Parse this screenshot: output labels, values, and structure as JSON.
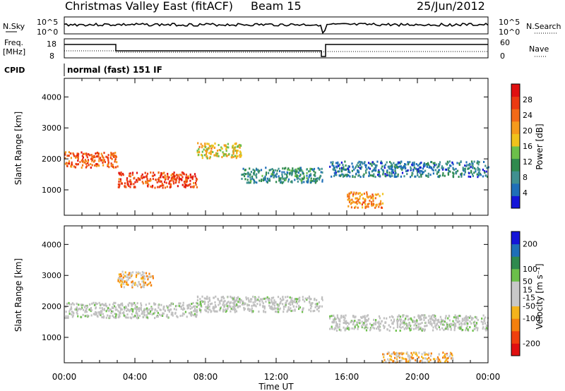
{
  "header": {
    "title": "Christmas Valley East (fitACF)",
    "beam": "Beam 15",
    "date": "25/Jun/2012"
  },
  "colors": {
    "power_scale": [
      "#1515d8",
      "#1f6fb8",
      "#3f9090",
      "#2f8a4e",
      "#6cc04a",
      "#f0c21c",
      "#f59a1c",
      "#f26a17",
      "#ec3a12",
      "#e01010"
    ],
    "velocity_scale": [
      "#e01010",
      "#f0400e",
      "#f5800e",
      "#f5b41c",
      "#c8c8c8",
      "#c8c8c8",
      "#6cc04a",
      "#2f8a4e",
      "#1f6fb8",
      "#1515d8"
    ],
    "ground_scatter": "#c0c0c0"
  },
  "panels": {
    "nsky_label": "N.Sky",
    "nsky_ticks": [
      "10^5",
      "10^0"
    ],
    "nsearch_label": "N.Search",
    "nsearch_ticks": [
      "10^5",
      "10^0"
    ],
    "freq_label": "Freq.",
    "freq_unit": "[MHz]",
    "freq_ticks": [
      "18",
      "8"
    ],
    "nave_label": "Nave",
    "nave_ticks": [
      "60",
      "0"
    ],
    "cpid_label": "CPID",
    "cpid_text": "normal (fast) 151 IF"
  },
  "chart_data": [
    {
      "type": "heatmap",
      "name": "power",
      "ylabel": "Slant Range [km]",
      "xlabel": "",
      "x_ticks": [
        "00:00",
        "04:00",
        "08:00",
        "12:00",
        "16:00",
        "20:00",
        "00:00"
      ],
      "xlim_hours": [
        0,
        24
      ],
      "y_ticks": [
        1000,
        2000,
        3000,
        4000
      ],
      "ylim": [
        180,
        4600
      ],
      "colorbar_label": "Power [dB]",
      "colorbar_ticks": [
        4,
        8,
        12,
        16,
        20,
        24,
        28
      ],
      "colorbar_range": [
        0,
        32
      ],
      "features": [
        {
          "from_hour": 0.0,
          "to_hour": 3.0,
          "range_km": 2000,
          "power_db": 26
        },
        {
          "from_hour": 3.0,
          "to_hour": 7.5,
          "range_km": 1350,
          "power_db": 28
        },
        {
          "from_hour": 7.5,
          "to_hour": 10.0,
          "range_km": 2300,
          "power_db": 18
        },
        {
          "from_hour": 10.0,
          "to_hour": 14.6,
          "range_km": 1500,
          "power_db": 8
        },
        {
          "from_hour": 15.0,
          "to_hour": 24.0,
          "range_km": 1700,
          "power_db": 6
        },
        {
          "from_hour": 16.0,
          "to_hour": 18.0,
          "range_km": 700,
          "power_db": 22
        }
      ]
    },
    {
      "type": "heatmap",
      "name": "velocity",
      "ylabel": "Slant Range [km]",
      "xlabel": "Time UT",
      "x_ticks": [
        "00:00",
        "04:00",
        "08:00",
        "12:00",
        "16:00",
        "20:00",
        "00:00"
      ],
      "xlim_hours": [
        0,
        24
      ],
      "y_ticks": [
        1000,
        2000,
        3000,
        4000
      ],
      "ylim": [
        180,
        4600
      ],
      "colorbar_label": "Velocity [m s⁻¹]",
      "colorbar_ticks": [
        200,
        100,
        50,
        15,
        -15,
        -50,
        -100,
        -200
      ],
      "colorbar_range": [
        -250,
        250
      ],
      "features": [
        {
          "from_hour": 0.0,
          "to_hour": 7.5,
          "range_km": 1900,
          "velocity": 0
        },
        {
          "from_hour": 3.0,
          "to_hour": 5.0,
          "range_km": 2900,
          "velocity": -60
        },
        {
          "from_hour": 7.5,
          "to_hour": 14.6,
          "range_km": 2100,
          "velocity": 0
        },
        {
          "from_hour": 15.0,
          "to_hour": 24.0,
          "range_km": 1500,
          "velocity": 0
        },
        {
          "from_hour": 18.0,
          "to_hour": 22.0,
          "range_km": 300,
          "velocity": -80
        }
      ]
    }
  ]
}
